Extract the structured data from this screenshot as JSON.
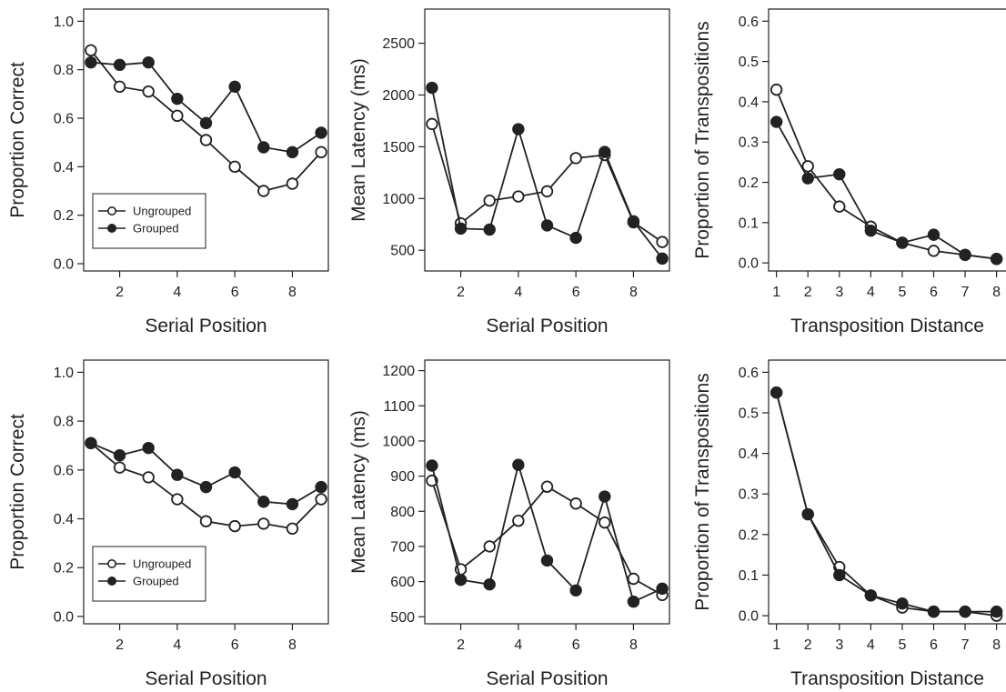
{
  "colors": {
    "ink": "#222222",
    "open_marker_fill": "#ffffff",
    "filled_marker_fill": "#222222"
  },
  "chart_data": [
    {
      "type": "line",
      "xlabel": "Serial Position",
      "ylabel": "Proportion Correct",
      "xlim": [
        0.75,
        9.25
      ],
      "ylim": [
        -0.03,
        1.05
      ],
      "xticks": [
        2,
        4,
        6,
        8
      ],
      "xtick_labels": [
        "2",
        "4",
        "6",
        "8"
      ],
      "yticks": [
        0,
        0.2,
        0.4,
        0.6,
        0.8,
        1.0
      ],
      "ytick_labels": [
        "0.0",
        "0.2",
        "0.4",
        "0.6",
        "0.8",
        "1.0"
      ],
      "legend": "bottom-left",
      "series": [
        {
          "name": "Ungrouped",
          "marker": "open",
          "x": [
            1,
            2,
            3,
            4,
            5,
            6,
            7,
            8,
            9
          ],
          "y": [
            0.88,
            0.73,
            0.71,
            0.61,
            0.51,
            0.4,
            0.3,
            0.33,
            0.46
          ]
        },
        {
          "name": "Grouped",
          "marker": "filled",
          "x": [
            1,
            2,
            3,
            4,
            5,
            6,
            7,
            8,
            9
          ],
          "y": [
            0.83,
            0.82,
            0.83,
            0.68,
            0.58,
            0.73,
            0.48,
            0.46,
            0.54
          ]
        }
      ]
    },
    {
      "type": "line",
      "xlabel": "Serial Position",
      "ylabel": "Mean Latency (ms)",
      "xlim": [
        0.75,
        9.25
      ],
      "ylim": [
        300,
        2830
      ],
      "xticks": [
        2,
        4,
        6,
        8
      ],
      "xtick_labels": [
        "2",
        "4",
        "6",
        "8"
      ],
      "yticks": [
        500,
        1000,
        1500,
        2000,
        2500
      ],
      "ytick_labels": [
        "500",
        "1000",
        "1500",
        "2000",
        "2500"
      ],
      "series": [
        {
          "marker": "open",
          "x": [
            1,
            2,
            3,
            4,
            5,
            6,
            7,
            8,
            9
          ],
          "y": [
            1720,
            760,
            980,
            1020,
            1070,
            1390,
            1420,
            770,
            580
          ]
        },
        {
          "marker": "filled",
          "x": [
            1,
            2,
            3,
            4,
            5,
            6,
            7,
            8,
            9
          ],
          "y": [
            2070,
            710,
            700,
            1670,
            740,
            620,
            1450,
            780,
            420
          ]
        }
      ]
    },
    {
      "type": "line",
      "xlabel": "Transposition Distance",
      "ylabel": "Proportion of Transpositions",
      "xlim": [
        0.75,
        8.3
      ],
      "ylim": [
        -0.02,
        0.63
      ],
      "xticks": [
        1,
        2,
        3,
        4,
        5,
        6,
        7,
        8
      ],
      "xtick_labels": [
        "1",
        "2",
        "3",
        "4",
        "5",
        "6",
        "7",
        "8"
      ],
      "yticks": [
        0,
        0.1,
        0.2,
        0.3,
        0.4,
        0.5,
        0.6
      ],
      "ytick_labels": [
        "0.0",
        "0.1",
        "0.2",
        "0.3",
        "0.4",
        "0.5",
        "0.6"
      ],
      "series": [
        {
          "marker": "open",
          "x": [
            1,
            2,
            3,
            4,
            5,
            6,
            7,
            8
          ],
          "y": [
            0.43,
            0.24,
            0.14,
            0.09,
            0.05,
            0.03,
            0.02,
            0.01
          ]
        },
        {
          "marker": "filled",
          "x": [
            1,
            2,
            3,
            4,
            5,
            6,
            7,
            8
          ],
          "y": [
            0.35,
            0.21,
            0.22,
            0.08,
            0.05,
            0.07,
            0.02,
            0.01
          ]
        }
      ]
    },
    {
      "type": "line",
      "xlabel": "Serial Position",
      "ylabel": "Proportion Correct",
      "xlim": [
        0.75,
        9.25
      ],
      "ylim": [
        -0.03,
        1.05
      ],
      "xticks": [
        2,
        4,
        6,
        8
      ],
      "xtick_labels": [
        "2",
        "4",
        "6",
        "8"
      ],
      "yticks": [
        0,
        0.2,
        0.4,
        0.6,
        0.8,
        1.0
      ],
      "ytick_labels": [
        "0.0",
        "0.2",
        "0.4",
        "0.6",
        "0.8",
        "1.0"
      ],
      "legend": "bottom-left",
      "series": [
        {
          "name": "Ungrouped",
          "marker": "open",
          "x": [
            1,
            2,
            3,
            4,
            5,
            6,
            7,
            8,
            9
          ],
          "y": [
            0.71,
            0.61,
            0.57,
            0.48,
            0.39,
            0.37,
            0.38,
            0.36,
            0.48
          ]
        },
        {
          "name": "Grouped",
          "marker": "filled",
          "x": [
            1,
            2,
            3,
            4,
            5,
            6,
            7,
            8,
            9
          ],
          "y": [
            0.71,
            0.66,
            0.69,
            0.58,
            0.53,
            0.59,
            0.47,
            0.46,
            0.53
          ]
        }
      ]
    },
    {
      "type": "line",
      "xlabel": "Serial Position",
      "ylabel": "Mean Latency (ms)",
      "xlim": [
        0.75,
        9.25
      ],
      "ylim": [
        480,
        1230
      ],
      "xticks": [
        2,
        4,
        6,
        8
      ],
      "xtick_labels": [
        "2",
        "4",
        "6",
        "8"
      ],
      "yticks": [
        500,
        600,
        700,
        800,
        900,
        1000,
        1100,
        1200
      ],
      "ytick_labels": [
        "500",
        "600",
        "700",
        "800",
        "900",
        "1000",
        "1100",
        "1200"
      ],
      "series": [
        {
          "marker": "open",
          "x": [
            1,
            2,
            3,
            4,
            5,
            6,
            7,
            8,
            9
          ],
          "y": [
            887,
            635,
            700,
            773,
            870,
            822,
            768,
            608,
            562
          ]
        },
        {
          "marker": "filled",
          "x": [
            1,
            2,
            3,
            4,
            5,
            6,
            7,
            8,
            9
          ],
          "y": [
            930,
            605,
            592,
            932,
            660,
            575,
            842,
            543,
            580
          ]
        }
      ]
    },
    {
      "type": "line",
      "xlabel": "Transposition Distance",
      "ylabel": "Proportion of Transpositions",
      "xlim": [
        0.75,
        8.3
      ],
      "ylim": [
        -0.02,
        0.63
      ],
      "xticks": [
        1,
        2,
        3,
        4,
        5,
        6,
        7,
        8
      ],
      "xtick_labels": [
        "1",
        "2",
        "3",
        "4",
        "5",
        "6",
        "7",
        "8"
      ],
      "yticks": [
        0,
        0.1,
        0.2,
        0.3,
        0.4,
        0.5,
        0.6
      ],
      "ytick_labels": [
        "0.0",
        "0.1",
        "0.2",
        "0.3",
        "0.4",
        "0.5",
        "0.6"
      ],
      "series": [
        {
          "marker": "open",
          "x": [
            1,
            2,
            3,
            4,
            5,
            6,
            7,
            8
          ],
          "y": [
            0.55,
            0.25,
            0.12,
            0.05,
            0.02,
            0.01,
            0.01,
            0.0
          ]
        },
        {
          "marker": "filled",
          "x": [
            1,
            2,
            3,
            4,
            5,
            6,
            7,
            8
          ],
          "y": [
            0.55,
            0.25,
            0.1,
            0.05,
            0.03,
            0.01,
            0.01,
            0.01
          ]
        }
      ]
    }
  ]
}
